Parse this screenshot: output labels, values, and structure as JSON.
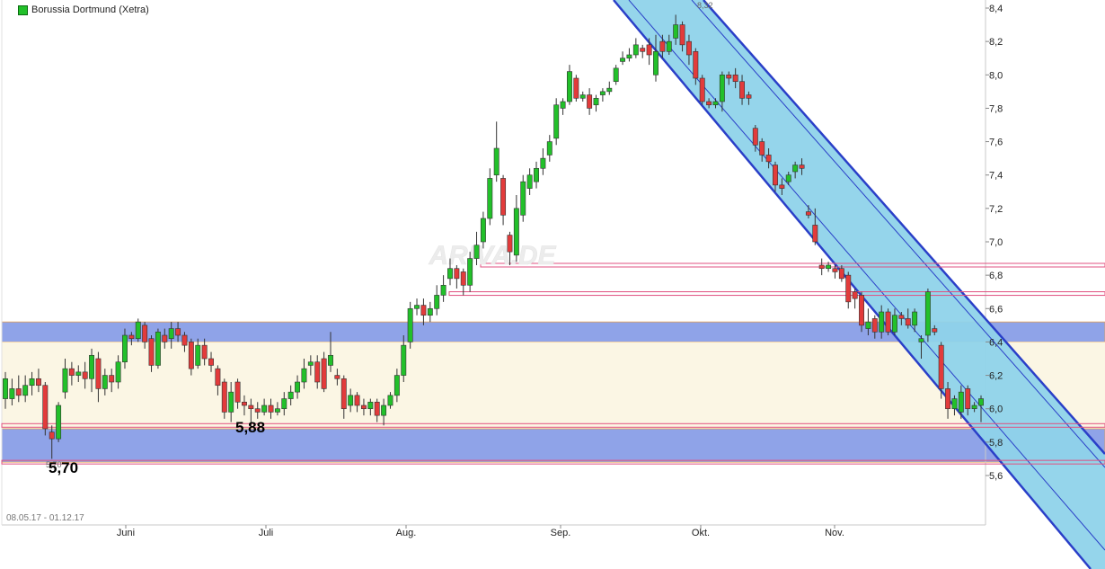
{
  "legend": {
    "label": "Borussia Dortmund (Xetra)",
    "color": "#22c02a"
  },
  "date_range": "08.05.17 - 01.12.17",
  "watermark": "ARIVA.DE",
  "annotations": {
    "low_1": "5,70",
    "low_1_small": "5,70",
    "low_2": "5,88",
    "high_small": "8,32"
  },
  "colors": {
    "up": "#22c02a",
    "down": "#e23b3b",
    "support_band": "#8fa3e8",
    "range_fill": "#fbf6e4",
    "channel_fill": "#8fd3ea",
    "channel_line": "#2a3fc8",
    "hline": "#e05080"
  },
  "chart_data": {
    "type": "candlestick",
    "title": "Borussia Dortmund (Xetra)",
    "ylim": [
      5.45,
      8.45
    ],
    "y_ticks": [
      "5,6",
      "5,8",
      "6,0",
      "6,2",
      "6,4",
      "6,6",
      "6,8",
      "7,0",
      "7,2",
      "7,4",
      "7,6",
      "7,8",
      "8,0",
      "8,2",
      "8,4"
    ],
    "x_ticks": [
      "Juni",
      "Juli",
      "Aug.",
      "Sep.",
      "Okt.",
      "Nov."
    ],
    "zones": [
      {
        "type": "band",
        "from": 6.4,
        "to": 6.52,
        "color": "#8fa3e8"
      },
      {
        "type": "band",
        "from": 5.88,
        "to": 6.4,
        "color": "#fbf6e4"
      },
      {
        "type": "band",
        "from": 5.68,
        "to": 5.88,
        "color": "#8fa3e8"
      }
    ],
    "horizontal_lines": [
      6.86,
      6.69,
      5.9,
      5.68
    ],
    "series": [
      {
        "candles": [
          [
            6.06,
            6.18,
            6.22,
            6.0
          ],
          [
            6.06,
            6.12,
            6.18,
            6.02
          ],
          [
            6.12,
            6.08,
            6.2,
            6.04
          ],
          [
            6.08,
            6.14,
            6.2,
            6.04
          ],
          [
            6.14,
            6.18,
            6.22,
            6.08
          ],
          [
            6.18,
            6.14,
            6.24,
            6.1
          ],
          [
            6.14,
            5.88,
            6.16,
            5.84
          ],
          [
            5.86,
            5.82,
            5.9,
            5.7
          ],
          [
            5.82,
            6.02,
            6.04,
            5.8
          ],
          [
            6.1,
            6.24,
            6.3,
            6.06
          ],
          [
            6.24,
            6.2,
            6.28,
            6.14
          ],
          [
            6.2,
            6.22,
            6.26,
            6.16
          ],
          [
            6.22,
            6.18,
            6.28,
            6.12
          ],
          [
            6.18,
            6.32,
            6.36,
            6.1
          ],
          [
            6.3,
            6.12,
            6.34,
            6.04
          ],
          [
            6.12,
            6.2,
            6.24,
            6.08
          ],
          [
            6.2,
            6.16,
            6.24,
            6.1
          ],
          [
            6.16,
            6.28,
            6.32,
            6.12
          ],
          [
            6.28,
            6.44,
            6.48,
            6.24
          ],
          [
            6.44,
            6.42,
            6.46,
            6.38
          ],
          [
            6.42,
            6.52,
            6.54,
            6.4
          ],
          [
            6.5,
            6.4,
            6.52,
            6.36
          ],
          [
            6.42,
            6.26,
            6.44,
            6.22
          ],
          [
            6.26,
            6.46,
            6.48,
            6.24
          ],
          [
            6.44,
            6.4,
            6.48,
            6.36
          ],
          [
            6.42,
            6.48,
            6.52,
            6.36
          ],
          [
            6.48,
            6.44,
            6.52,
            6.4
          ],
          [
            6.44,
            6.38,
            6.46,
            6.34
          ],
          [
            6.4,
            6.24,
            6.42,
            6.2
          ],
          [
            6.26,
            6.38,
            6.42,
            6.24
          ],
          [
            6.38,
            6.3,
            6.42,
            6.26
          ],
          [
            6.3,
            6.26,
            6.34,
            6.22
          ],
          [
            6.24,
            6.14,
            6.26,
            6.08
          ],
          [
            6.16,
            5.98,
            6.18,
            5.94
          ],
          [
            5.98,
            6.1,
            6.16,
            5.92
          ],
          [
            6.16,
            6.04,
            6.18,
            6.0
          ],
          [
            6.04,
            6.02,
            6.08,
            5.96
          ],
          [
            6.02,
            6.0,
            6.06,
            5.9
          ],
          [
            6.0,
            5.98,
            6.04,
            5.94
          ],
          [
            5.98,
            6.02,
            6.06,
            5.96
          ],
          [
            6.02,
            5.98,
            6.06,
            5.94
          ],
          [
            5.98,
            6.0,
            6.04,
            5.96
          ],
          [
            6.0,
            6.06,
            6.1,
            5.96
          ],
          [
            6.06,
            6.1,
            6.14,
            6.02
          ],
          [
            6.1,
            6.16,
            6.2,
            6.06
          ],
          [
            6.16,
            6.24,
            6.3,
            6.12
          ],
          [
            6.26,
            6.28,
            6.32,
            6.2
          ],
          [
            6.28,
            6.16,
            6.32,
            6.12
          ],
          [
            6.3,
            6.12,
            6.34,
            6.1
          ],
          [
            6.26,
            6.32,
            6.46,
            6.22
          ],
          [
            6.2,
            6.18,
            6.24,
            6.14
          ],
          [
            6.18,
            6.0,
            6.2,
            5.94
          ],
          [
            6.02,
            6.08,
            6.12,
            5.98
          ],
          [
            6.08,
            6.02,
            6.1,
            5.98
          ],
          [
            6.02,
            6.0,
            6.06,
            5.96
          ],
          [
            6.0,
            6.04,
            6.06,
            5.96
          ],
          [
            6.04,
            5.96,
            6.06,
            5.92
          ],
          [
            5.96,
            6.02,
            6.06,
            5.9
          ],
          [
            6.02,
            6.08,
            6.1,
            6.0
          ],
          [
            6.08,
            6.2,
            6.24,
            6.04
          ],
          [
            6.2,
            6.38,
            6.44,
            6.16
          ],
          [
            6.4,
            6.6,
            6.64,
            6.36
          ],
          [
            6.6,
            6.62,
            6.66,
            6.56
          ],
          [
            6.62,
            6.56,
            6.66,
            6.5
          ],
          [
            6.56,
            6.6,
            6.64,
            6.52
          ],
          [
            6.6,
            6.68,
            6.74,
            6.56
          ],
          [
            6.68,
            6.74,
            6.8,
            6.64
          ],
          [
            6.78,
            6.84,
            6.9,
            6.74
          ],
          [
            6.84,
            6.78,
            6.86,
            6.72
          ],
          [
            6.82,
            6.74,
            6.84,
            6.68
          ],
          [
            6.74,
            6.9,
            6.94,
            6.7
          ],
          [
            6.9,
            6.98,
            7.06,
            6.86
          ],
          [
            7.0,
            7.14,
            7.18,
            6.96
          ],
          [
            7.14,
            7.38,
            7.44,
            7.1
          ],
          [
            7.4,
            7.56,
            7.72,
            7.36
          ],
          [
            7.38,
            7.16,
            7.4,
            7.1
          ],
          [
            7.04,
            6.94,
            7.06,
            6.86
          ],
          [
            6.92,
            7.2,
            7.28,
            6.88
          ],
          [
            7.16,
            7.36,
            7.4,
            7.12
          ],
          [
            7.32,
            7.4,
            7.44,
            7.28
          ],
          [
            7.36,
            7.44,
            7.48,
            7.32
          ],
          [
            7.44,
            7.5,
            7.56,
            7.4
          ],
          [
            7.52,
            7.6,
            7.64,
            7.48
          ],
          [
            7.62,
            7.82,
            7.86,
            7.58
          ],
          [
            7.8,
            7.84,
            7.86,
            7.76
          ],
          [
            7.84,
            8.02,
            8.06,
            7.82
          ],
          [
            7.98,
            7.86,
            8.0,
            7.84
          ],
          [
            7.86,
            7.88,
            7.9,
            7.84
          ],
          [
            7.88,
            7.8,
            7.92,
            7.76
          ],
          [
            7.82,
            7.86,
            7.88,
            7.78
          ],
          [
            7.88,
            7.9,
            7.92,
            7.84
          ],
          [
            7.9,
            7.92,
            7.96,
            7.88
          ],
          [
            7.96,
            8.04,
            8.06,
            7.94
          ],
          [
            8.08,
            8.1,
            8.14,
            8.06
          ],
          [
            8.1,
            8.12,
            8.16,
            8.08
          ],
          [
            8.12,
            8.18,
            8.22,
            8.1
          ],
          [
            8.16,
            8.14,
            8.18,
            8.1
          ],
          [
            8.18,
            8.12,
            8.22,
            8.06
          ],
          [
            8.0,
            8.14,
            8.24,
            7.96
          ],
          [
            8.2,
            8.14,
            8.24,
            8.1
          ],
          [
            8.14,
            8.2,
            8.24,
            8.12
          ],
          [
            8.22,
            8.3,
            8.36,
            8.18
          ],
          [
            8.3,
            8.18,
            8.32,
            8.14
          ],
          [
            8.2,
            8.12,
            8.24,
            8.06
          ],
          [
            8.14,
            7.98,
            8.16,
            7.94
          ],
          [
            7.98,
            7.84,
            8.0,
            7.82
          ],
          [
            7.84,
            7.82,
            7.86,
            7.8
          ],
          [
            7.82,
            7.84,
            7.86,
            7.8
          ],
          [
            7.84,
            8.0,
            8.02,
            7.78
          ],
          [
            8.0,
            7.98,
            8.02,
            7.94
          ],
          [
            8.0,
            7.96,
            8.04,
            7.92
          ],
          [
            7.96,
            7.86,
            8.0,
            7.82
          ],
          [
            7.88,
            7.86,
            7.9,
            7.82
          ],
          [
            7.68,
            7.58,
            7.7,
            7.54
          ],
          [
            7.6,
            7.52,
            7.62,
            7.48
          ],
          [
            7.52,
            7.48,
            7.56,
            7.44
          ],
          [
            7.46,
            7.34,
            7.48,
            7.3
          ],
          [
            7.34,
            7.32,
            7.38,
            7.28
          ],
          [
            7.36,
            7.4,
            7.42,
            7.34
          ],
          [
            7.42,
            7.46,
            7.48,
            7.38
          ],
          [
            7.46,
            7.44,
            7.5,
            7.4
          ],
          [
            7.18,
            7.16,
            7.22,
            7.14
          ],
          [
            7.1,
            7.0,
            7.2,
            6.98
          ],
          [
            6.86,
            6.84,
            6.9,
            6.8
          ],
          [
            6.84,
            6.86,
            6.88,
            6.82
          ],
          [
            6.84,
            6.82,
            6.86,
            6.78
          ],
          [
            6.84,
            6.78,
            6.86,
            6.76
          ],
          [
            6.8,
            6.64,
            6.82,
            6.6
          ],
          [
            6.7,
            6.66,
            6.72,
            6.6
          ],
          [
            6.68,
            6.5,
            6.7,
            6.46
          ],
          [
            6.48,
            6.52,
            6.6,
            6.44
          ],
          [
            6.54,
            6.46,
            6.56,
            6.42
          ],
          [
            6.46,
            6.58,
            6.62,
            6.42
          ],
          [
            6.58,
            6.46,
            6.6,
            6.44
          ],
          [
            6.46,
            6.56,
            6.6,
            6.44
          ],
          [
            6.56,
            6.54,
            6.58,
            6.5
          ],
          [
            6.54,
            6.5,
            6.6,
            6.48
          ],
          [
            6.5,
            6.58,
            6.6,
            6.46
          ],
          [
            6.4,
            6.42,
            6.44,
            6.3
          ],
          [
            6.44,
            6.7,
            6.72,
            6.4
          ],
          [
            6.48,
            6.46,
            6.5,
            6.44
          ],
          [
            6.38,
            6.12,
            6.4,
            6.06
          ],
          [
            6.12,
            6.0,
            6.16,
            5.94
          ],
          [
            6.0,
            6.06,
            6.08,
            5.96
          ],
          [
            5.98,
            6.1,
            6.14,
            5.94
          ],
          [
            6.12,
            6.0,
            6.14,
            5.96
          ],
          [
            6.0,
            6.02,
            6.04,
            5.98
          ],
          [
            6.02,
            6.06,
            6.08,
            5.92
          ]
        ]
      }
    ]
  }
}
